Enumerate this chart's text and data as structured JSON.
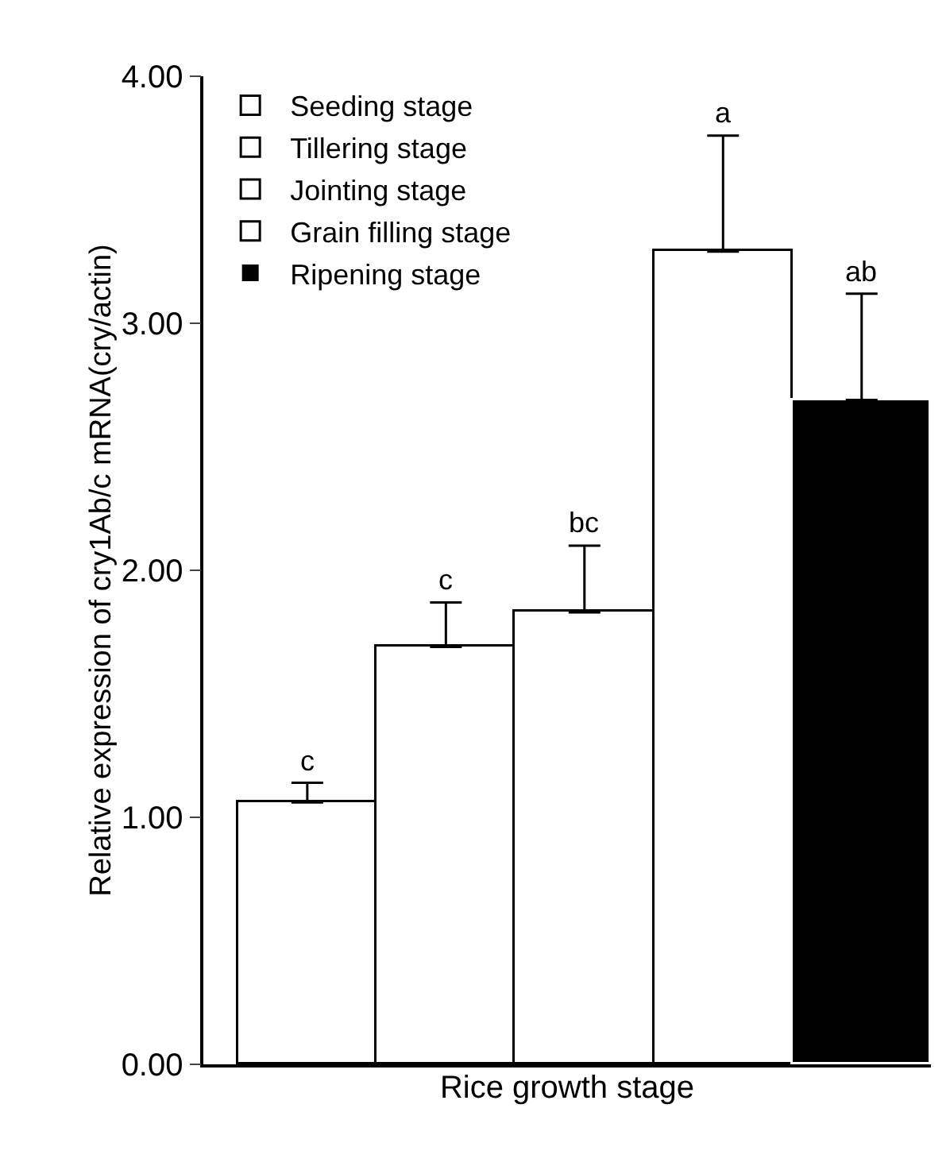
{
  "chart_data": {
    "type": "bar",
    "xlabel": "Rice growth stage",
    "ylabel": "Relative expression of cry1Ab/c mRNA(cry/actin)",
    "categories": [
      null,
      null,
      null,
      null,
      null
    ],
    "series": [
      {
        "name": "Seeding stage",
        "color": "#ffffff",
        "values": [
          1.06,
          null,
          null,
          null,
          null
        ],
        "errors": [
          [
            1.06,
            1.14
          ],
          null,
          null,
          null,
          null
        ]
      },
      {
        "name": "Tillering stage",
        "color": "#ffffff",
        "values": [
          null,
          1.69,
          null,
          null,
          null
        ],
        "errors": [
          null,
          [
            1.69,
            1.87
          ],
          null,
          null,
          null
        ]
      },
      {
        "name": "Jointing stage",
        "color": "#ffffff",
        "values": [
          null,
          null,
          1.83,
          null,
          null
        ],
        "errors": [
          null,
          null,
          [
            1.83,
            2.1
          ],
          null,
          null
        ]
      },
      {
        "name": "Grain filling stage",
        "color": "#ffffff",
        "values": [
          null,
          null,
          null,
          3.29,
          null
        ],
        "errors": [
          null,
          null,
          null,
          [
            3.29,
            3.76
          ],
          null
        ]
      },
      {
        "name": "Ripening stage",
        "color": "#000000",
        "values": [
          null,
          null,
          null,
          null,
          2.69
        ],
        "errors": [
          null,
          null,
          null,
          null,
          [
            2.69,
            3.12
          ]
        ]
      }
    ],
    "annotations": [
      {
        "text": "c",
        "y": 1.14
      },
      {
        "text": "c",
        "y": 1.87
      },
      {
        "text": "bc",
        "y": 2.1
      },
      {
        "text": "a",
        "y": 3.76
      },
      {
        "text": "ab",
        "y": 3.12
      }
    ],
    "ylim": [
      0,
      4
    ],
    "yticks": [
      {
        "value": 0,
        "label": "0.00"
      },
      {
        "value": 1,
        "label": "1.00"
      },
      {
        "value": 2,
        "label": "2.00"
      },
      {
        "value": 3,
        "label": "3.00"
      },
      {
        "value": 4,
        "label": "4.00"
      }
    ],
    "grid": false,
    "legend": "top left"
  }
}
